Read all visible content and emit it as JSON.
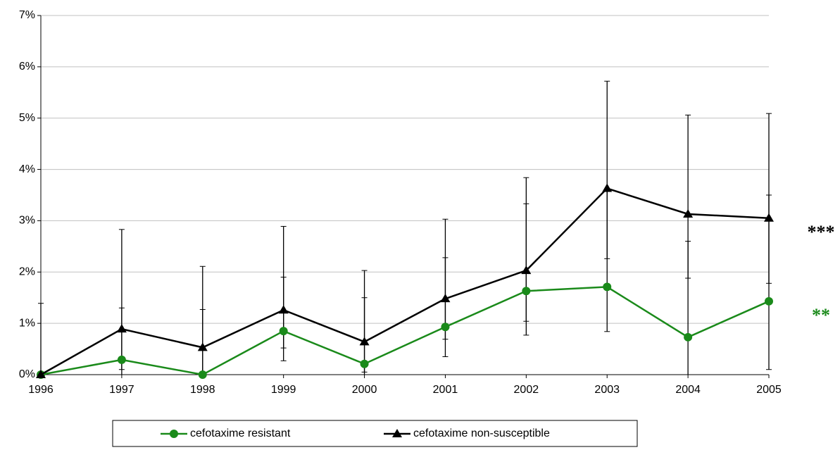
{
  "chart_data": {
    "type": "line",
    "x": [
      1996,
      1997,
      1998,
      1999,
      2000,
      2001,
      2002,
      2003,
      2004,
      2005
    ],
    "xlim": [
      1996,
      2005
    ],
    "xticks": [
      1996,
      1997,
      1998,
      1999,
      2000,
      2001,
      2002,
      2003,
      2004,
      2005
    ],
    "ylim": [
      0,
      7
    ],
    "yticks": [
      {
        "value": 0,
        "label": "0%"
      },
      {
        "value": 1,
        "label": "1%"
      },
      {
        "value": 2,
        "label": "2%"
      },
      {
        "value": 3,
        "label": "3%"
      },
      {
        "value": 4,
        "label": "4%"
      },
      {
        "value": 5,
        "label": "5%"
      },
      {
        "value": 6,
        "label": "6%"
      },
      {
        "value": 7,
        "label": "7%"
      }
    ],
    "grid": true,
    "series": [
      {
        "name": "cefotaxime resistant",
        "color": "#1a8a1a",
        "marker": "circle",
        "values": [
          0,
          0.29,
          0,
          0.85,
          0.21,
          0.93,
          1.63,
          1.71,
          0.73,
          1.43
        ],
        "lower": [
          0,
          0,
          0,
          0.27,
          0,
          0.35,
          0.77,
          0.84,
          0,
          0.1
        ],
        "upper": [
          0,
          1.3,
          1.27,
          1.9,
          1.5,
          2.28,
          3.33,
          3.6,
          2.6,
          3.5
        ],
        "annotation": "**"
      },
      {
        "name": "cefotaxime non-susceptible",
        "color": "#000000",
        "marker": "triangle",
        "values": [
          0,
          0.89,
          0.53,
          1.26,
          0.64,
          1.48,
          2.03,
          3.63,
          3.13,
          3.05
        ],
        "lower": [
          0,
          0.1,
          0.05,
          0.52,
          0.05,
          0.69,
          1.04,
          2.26,
          1.88,
          1.78
        ],
        "upper": [
          1.39,
          2.83,
          2.11,
          2.89,
          2.03,
          3.03,
          3.84,
          5.72,
          5.06,
          5.09
        ],
        "annotation": "***"
      }
    ]
  }
}
